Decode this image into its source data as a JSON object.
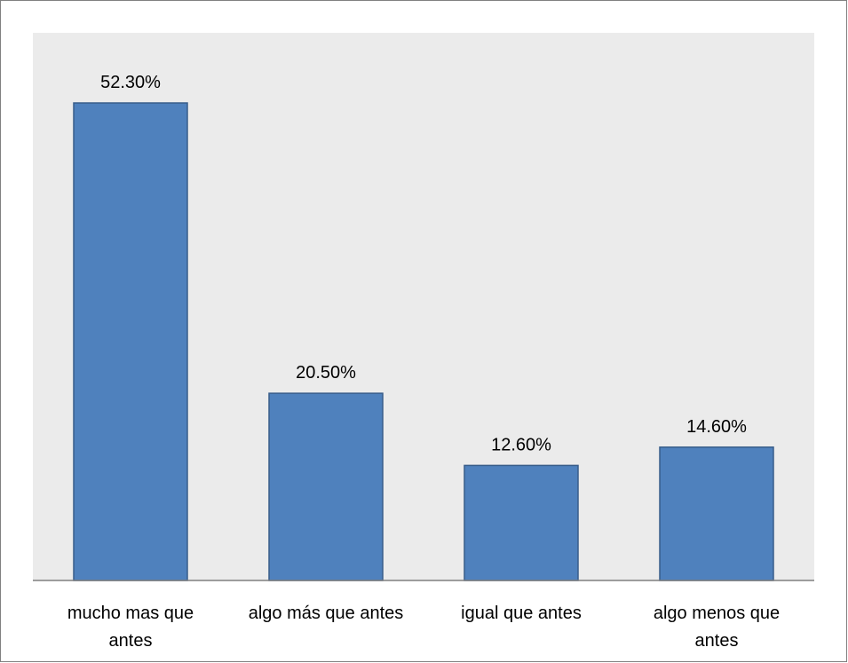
{
  "chart_data": {
    "type": "bar",
    "categories": [
      [
        "mucho mas que",
        "antes"
      ],
      [
        "algo más que antes"
      ],
      [
        "igual que antes"
      ],
      [
        "algo menos que",
        "antes"
      ]
    ],
    "values": [
      52.3,
      20.5,
      12.6,
      14.6
    ],
    "data_labels": [
      "52.30%",
      "20.50%",
      "12.60%",
      "14.60%"
    ],
    "title": "",
    "xlabel": "",
    "ylabel": "",
    "ylim": [
      0,
      60
    ],
    "grid": false,
    "legend": "none",
    "colors": {
      "bar_fill": "#4f81bd",
      "bar_stroke": "#385d8a",
      "plot_background": "#ebebeb",
      "axis": "#808080"
    }
  }
}
